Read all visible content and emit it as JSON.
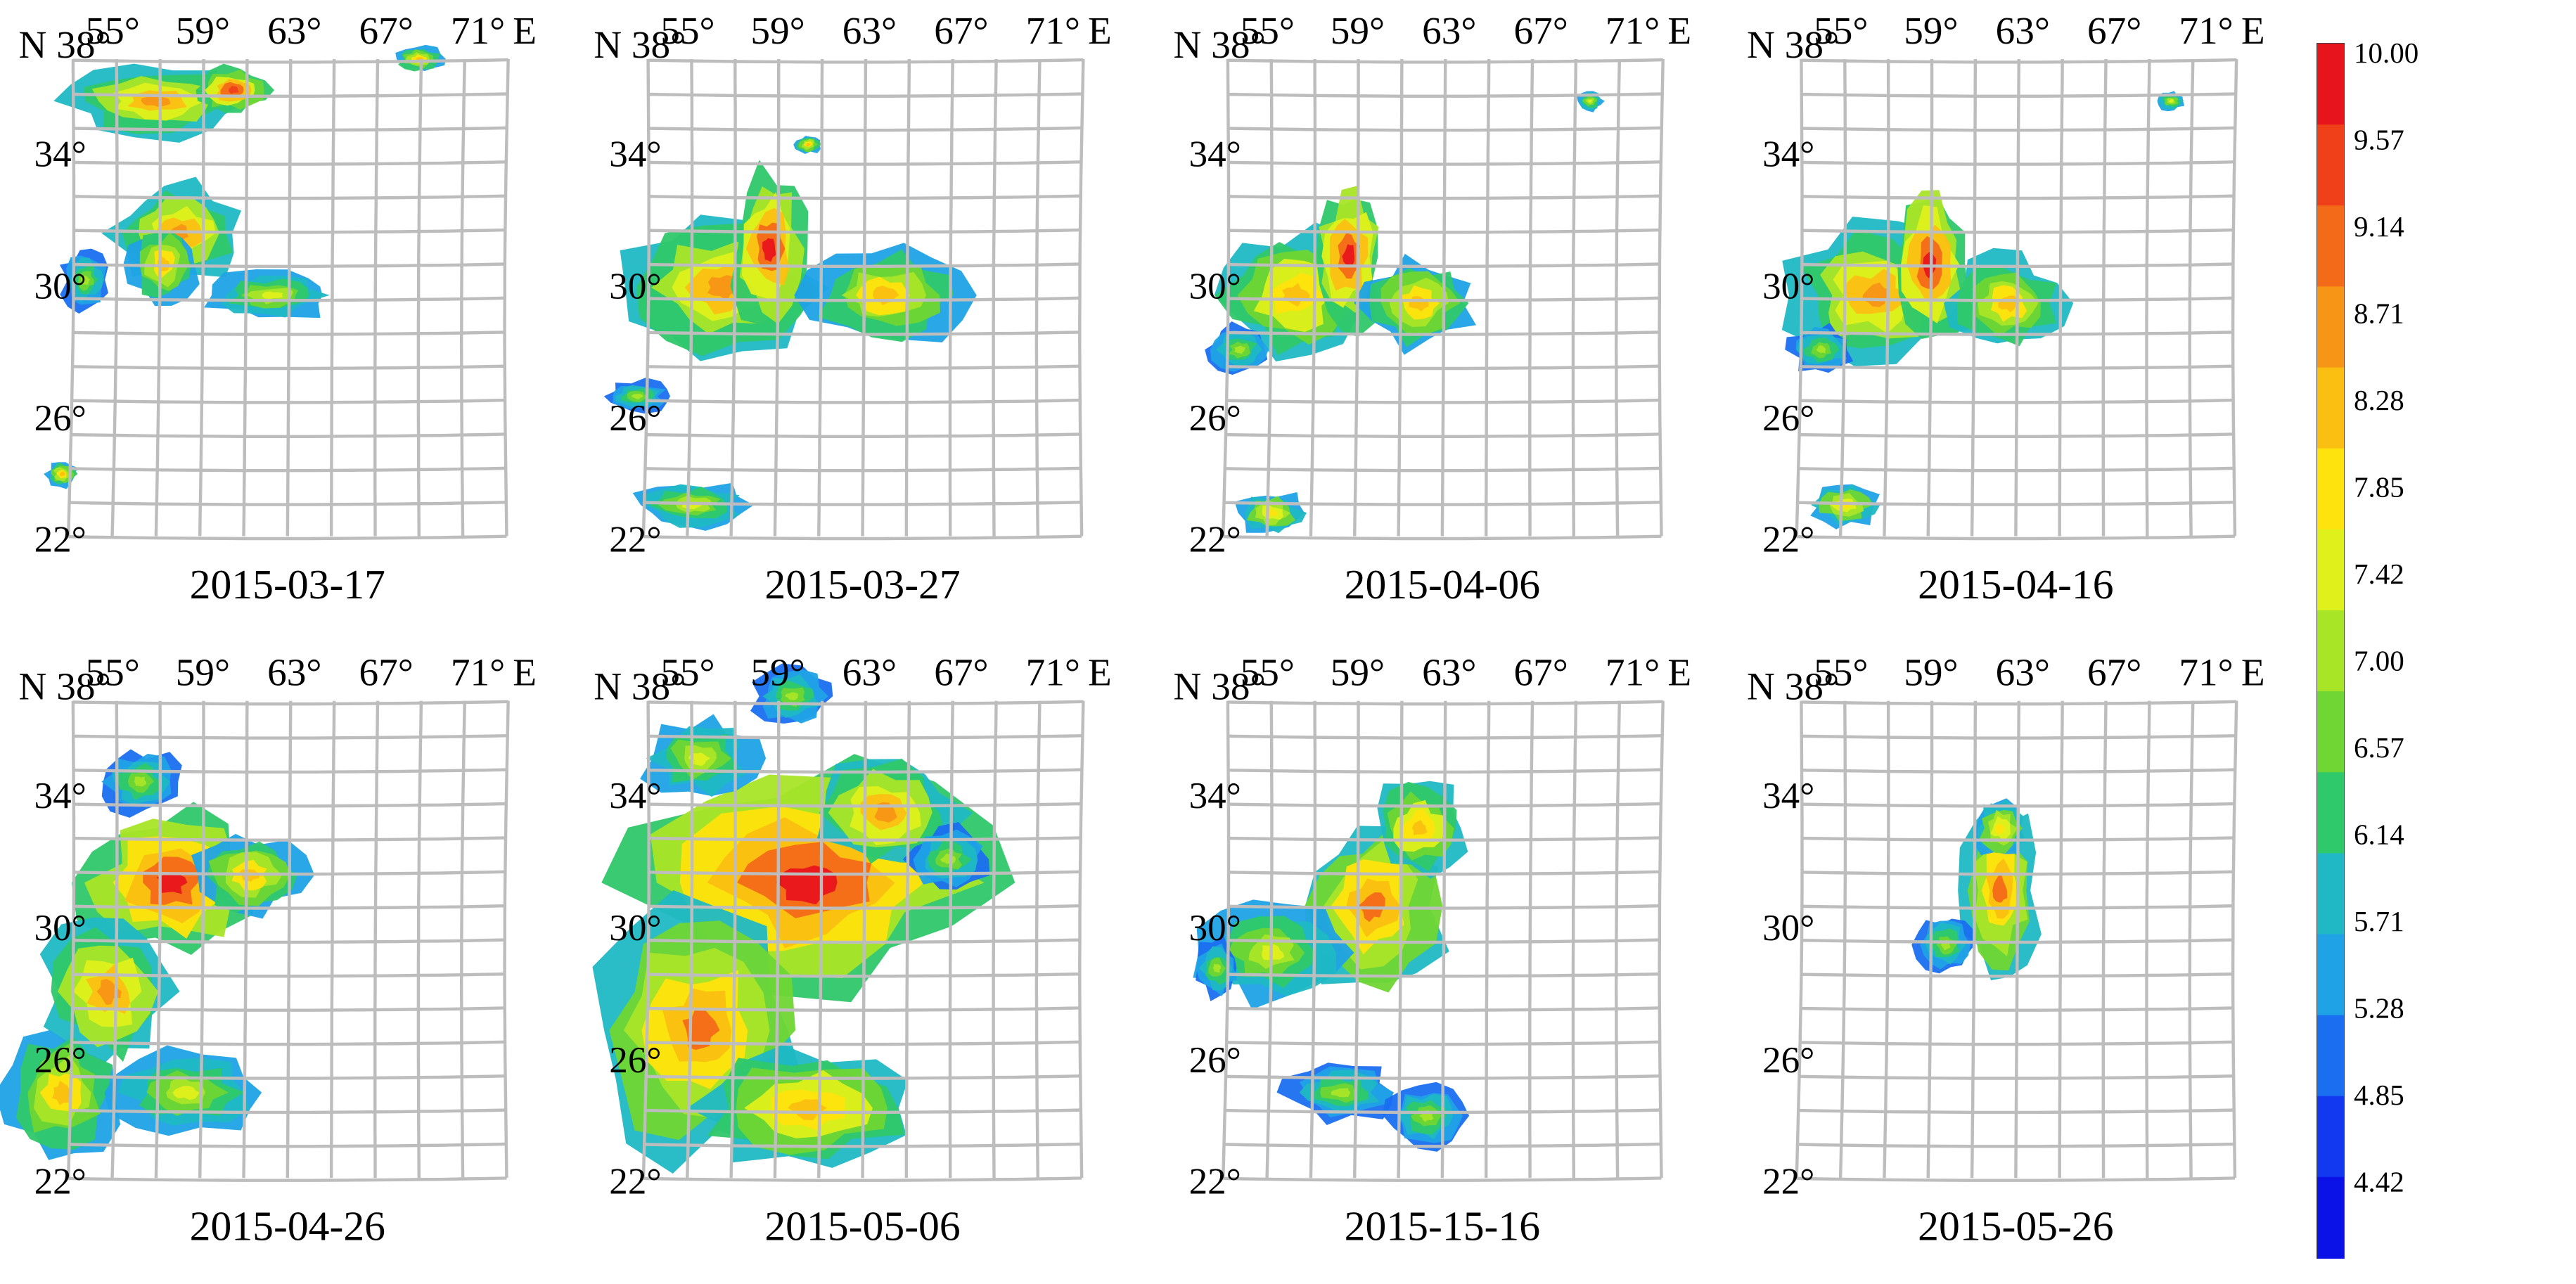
{
  "figure": {
    "lat_labels": [
      "N 38°",
      "34°",
      "30°",
      "26°",
      "22°"
    ],
    "lon_labels": [
      "55°",
      "59°",
      "63°",
      "67°",
      "71°"
    ],
    "east_label": "E",
    "panels": [
      {
        "date": "2015-03-17"
      },
      {
        "date": "2015-03-27"
      },
      {
        "date": "2015-04-06"
      },
      {
        "date": "2015-04-16"
      },
      {
        "date": "2015-04-26"
      },
      {
        "date": "2015-05-06"
      },
      {
        "date": "2015-15-16"
      },
      {
        "date": "2015-05-26"
      }
    ]
  },
  "colorbar": {
    "labels": [
      "10.00",
      "9.57",
      "9.14",
      "8.71",
      "8.28",
      "7.85",
      "7.42",
      "7.00",
      "6.57",
      "6.14",
      "5.71",
      "5.28",
      "4.85",
      "4.42"
    ],
    "colors": [
      "#e8141c",
      "#f0401a",
      "#f36a18",
      "#f79516",
      "#fbbf12",
      "#ffe30c",
      "#dff01a",
      "#a9e527",
      "#6fd633",
      "#2fc86a",
      "#1fb8c4",
      "#1fa2e6",
      "#1a6ef0",
      "#1238f0",
      "#0a12e8"
    ]
  }
}
